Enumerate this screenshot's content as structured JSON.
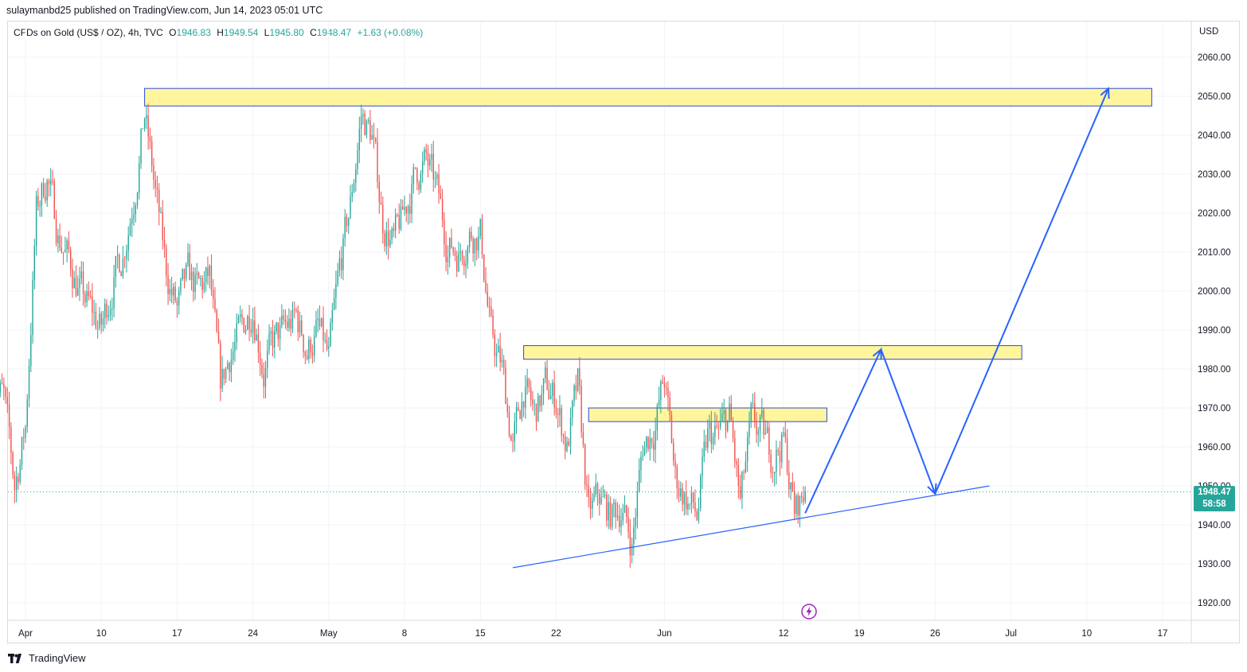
{
  "header": {
    "text": "sulaymanbd25 published on TradingView.com, Jun 14, 2023 05:01 UTC"
  },
  "legend": {
    "symbol": "CFDs on Gold (US$ / OZ), 4h, TVC",
    "o_label": "O",
    "o_value": "1946.83",
    "h_label": "H",
    "h_value": "1949.54",
    "l_label": "L",
    "l_value": "1945.80",
    "c_label": "C",
    "c_value": "1948.47",
    "change": "+1.63 (+0.08%)"
  },
  "axis": {
    "currency": "USD"
  },
  "price_badge": {
    "price": "1948.47",
    "countdown": "58:58"
  },
  "footer": {
    "brand": "TradingView"
  },
  "colors": {
    "up": "#26a69a",
    "down": "#ef5350",
    "zone_fill": "#fff59d",
    "zone_border": "#2a4bd7",
    "drawing": "#2962ff",
    "grid": "#f0f3fa"
  },
  "icons": {
    "logo": "tradingview-logo-icon",
    "event": "lightning-icon"
  },
  "chart_data": {
    "type": "candlestick",
    "interval": "4h",
    "ylim": [
      1915,
      2070
    ],
    "y_ticks": [
      1920,
      1930,
      1940,
      1950,
      1960,
      1970,
      1980,
      1990,
      2000,
      2010,
      2020,
      2030,
      2040,
      2050,
      2060
    ],
    "y_tick_labels": [
      "1920.00",
      "1930.00",
      "1940.00",
      "1950.00",
      "1960.00",
      "1970.00",
      "1980.00",
      "1990.00",
      "2000.00",
      "2010.00",
      "2020.00",
      "2030.00",
      "2040.00",
      "2050.00",
      "2060.00"
    ],
    "x_ticks": [
      {
        "label": "Apr",
        "date": "2023-04-03"
      },
      {
        "label": "10",
        "date": "2023-04-10"
      },
      {
        "label": "17",
        "date": "2023-04-17"
      },
      {
        "label": "24",
        "date": "2023-04-24"
      },
      {
        "label": "May",
        "date": "2023-05-01"
      },
      {
        "label": "8",
        "date": "2023-05-08"
      },
      {
        "label": "15",
        "date": "2023-05-15"
      },
      {
        "label": "22",
        "date": "2023-05-22"
      },
      {
        "label": "Jun",
        "date": "2023-06-01"
      },
      {
        "label": "12",
        "date": "2023-06-12"
      },
      {
        "label": "19",
        "date": "2023-06-19"
      },
      {
        "label": "26",
        "date": "2023-06-26"
      },
      {
        "label": "Jul",
        "date": "2023-07-03"
      },
      {
        "label": "10",
        "date": "2023-07-10"
      },
      {
        "label": "17",
        "date": "2023-07-17"
      }
    ],
    "last_price": 1948.47,
    "price_path": [
      [
        "2023-03-31",
        1980
      ],
      [
        "2023-04-01",
        1972
      ],
      [
        "2023-04-02",
        1950
      ],
      [
        "2023-04-03",
        1965
      ],
      [
        "2023-04-04",
        2020
      ],
      [
        "2023-04-05",
        2030
      ],
      [
        "2023-04-06",
        2015
      ],
      [
        "2023-04-07",
        2008
      ],
      [
        "2023-04-08",
        2000
      ],
      [
        "2023-04-09",
        1995
      ],
      [
        "2023-04-10",
        1990
      ],
      [
        "2023-04-11",
        2002
      ],
      [
        "2023-04-12",
        2010
      ],
      [
        "2023-04-13",
        2025
      ],
      [
        "2023-04-14",
        2045
      ],
      [
        "2023-04-15",
        2025
      ],
      [
        "2023-04-16",
        2005
      ],
      [
        "2023-04-17",
        1995
      ],
      [
        "2023-04-18",
        2003
      ],
      [
        "2023-04-19",
        2000
      ],
      [
        "2023-04-20",
        2003
      ],
      [
        "2023-04-21",
        1975
      ],
      [
        "2023-04-22",
        1985
      ],
      [
        "2023-04-23",
        1990
      ],
      [
        "2023-04-24",
        1997
      ],
      [
        "2023-04-25",
        1980
      ],
      [
        "2023-04-26",
        1987
      ],
      [
        "2023-04-27",
        1990
      ],
      [
        "2023-04-28",
        1993
      ],
      [
        "2023-04-29",
        1985
      ],
      [
        "2023-04-30",
        1990
      ],
      [
        "2023-05-01",
        1982
      ],
      [
        "2023-05-02",
        2005
      ],
      [
        "2023-05-03",
        2022
      ],
      [
        "2023-05-04",
        2045
      ],
      [
        "2023-05-05",
        2040
      ],
      [
        "2023-05-06",
        2018
      ],
      [
        "2023-05-07",
        2012
      ],
      [
        "2023-05-08",
        2020
      ],
      [
        "2023-05-09",
        2030
      ],
      [
        "2023-05-10",
        2033
      ],
      [
        "2023-05-11",
        2025
      ],
      [
        "2023-05-12",
        2012
      ],
      [
        "2023-05-13",
        2010
      ],
      [
        "2023-05-14",
        2015
      ],
      [
        "2023-05-15",
        2015
      ],
      [
        "2023-05-16",
        1988
      ],
      [
        "2023-05-17",
        1980
      ],
      [
        "2023-05-18",
        1960
      ],
      [
        "2023-05-19",
        1975
      ],
      [
        "2023-05-20",
        1968
      ],
      [
        "2023-05-21",
        1975
      ],
      [
        "2023-05-22",
        1972
      ],
      [
        "2023-05-23",
        1960
      ],
      [
        "2023-05-24",
        1975
      ],
      [
        "2023-05-25",
        1942
      ],
      [
        "2023-05-26",
        1947
      ],
      [
        "2023-05-27",
        1942
      ],
      [
        "2023-05-28",
        1945
      ],
      [
        "2023-05-29",
        1935
      ],
      [
        "2023-05-30",
        1960
      ],
      [
        "2023-05-31",
        1965
      ],
      [
        "2023-06-01",
        1977
      ],
      [
        "2023-06-02",
        1952
      ],
      [
        "2023-06-03",
        1947
      ],
      [
        "2023-06-04",
        1942
      ],
      [
        "2023-06-05",
        1962
      ],
      [
        "2023-06-06",
        1963
      ],
      [
        "2023-06-07",
        1968
      ],
      [
        "2023-06-08",
        1945
      ],
      [
        "2023-06-09",
        1965
      ],
      [
        "2023-06-10",
        1963
      ],
      [
        "2023-06-11",
        1958
      ],
      [
        "2023-06-12",
        1962
      ],
      [
        "2023-06-13",
        1943
      ],
      [
        "2023-06-14",
        1948.47
      ]
    ],
    "zones": [
      {
        "from": "2023-04-14",
        "to": "2023-07-16",
        "low": 2047.5,
        "high": 2052
      },
      {
        "from": "2023-05-19",
        "to": "2023-07-04",
        "low": 1982.5,
        "high": 1986
      },
      {
        "from": "2023-05-25",
        "to": "2023-06-16",
        "low": 1966.5,
        "high": 1970
      }
    ],
    "trendline": [
      [
        "2023-05-18",
        1929
      ],
      [
        "2023-07-01",
        1950
      ]
    ],
    "projection": [
      [
        "2023-06-14",
        1943
      ],
      [
        "2023-06-21",
        1985
      ],
      [
        "2023-06-26",
        1948
      ],
      [
        "2023-07-12",
        2052
      ]
    ]
  }
}
